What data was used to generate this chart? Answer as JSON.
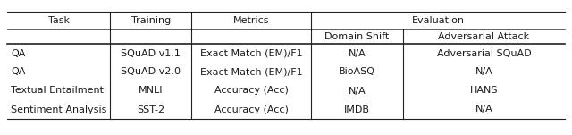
{
  "col_labels": [
    "Task",
    "Training",
    "Metrics",
    "Domain Shift",
    "Adversarial Attack"
  ],
  "header1_texts": [
    "Task",
    "Training",
    "Metrics",
    "Evaluation"
  ],
  "header2_texts": [
    "Domain Shift",
    "Adversarial Attack"
  ],
  "rows": [
    [
      "QA",
      "SQuAD v1.1",
      "Exact Match (EM)/F1",
      "N/A",
      "Adversarial SQuAD"
    ],
    [
      "QA",
      "SQuAD v2.0",
      "Exact Match (EM)/F1",
      "BioASQ",
      "N/A"
    ],
    [
      "Textual Entailment",
      "MNLI",
      "Accuracy (Acc)",
      "N/A",
      "HANS"
    ],
    [
      "Sentiment Analysis",
      "SST-2",
      "Accuracy (Acc)",
      "IMDB",
      "N/A"
    ]
  ],
  "background_color": "#ffffff",
  "text_color": "#1a1a1a",
  "font_size": 8.0,
  "figwidth": 6.4,
  "figheight": 1.51
}
